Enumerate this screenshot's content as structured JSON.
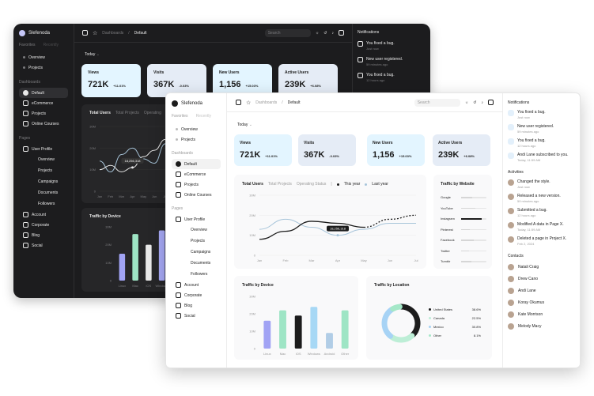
{
  "dark": {
    "brand": "Slefenoda",
    "fav_tabs": [
      "Favorites",
      "Recently"
    ],
    "fav_items": [
      "Overview",
      "Projects"
    ],
    "dash_heading": "Dashboards",
    "dash_items": [
      "Default",
      "eCommerce",
      "Projects",
      "Online Courses"
    ],
    "pages_heading": "Pages",
    "user_profile": "User Profile",
    "profile_sub": [
      "Overview",
      "Projects",
      "Campaigns",
      "Documents",
      "Followers"
    ],
    "pages_items": [
      "Account",
      "Corporate",
      "Blog",
      "Social"
    ],
    "breadcrumb": [
      "Dashboards",
      "Default"
    ],
    "search_placeholder": "Search",
    "today": "Today",
    "stats": [
      {
        "label": "Views",
        "value": "721K",
        "change": "+11.01%"
      },
      {
        "label": "Visits",
        "value": "367K",
        "change": "-0.03%"
      },
      {
        "label": "New Users",
        "value": "1,156",
        "change": "+15.03%"
      },
      {
        "label": "Active Users",
        "value": "239K",
        "change": "+6.08%"
      }
    ],
    "tabs": [
      "Total Users",
      "Total Projects",
      "Operating"
    ],
    "notifications_title": "Notifications",
    "notifications": [
      {
        "text": "You fixed a bug.",
        "time": "Just now"
      },
      {
        "text": "New user registered.",
        "time": "59 minutes ago"
      },
      {
        "text": "You fixed a bug.",
        "time": "12 hours ago"
      }
    ],
    "device_title": "Traffic by Device",
    "annotation": "18,256,318"
  },
  "light": {
    "brand": "Slefenoda",
    "fav_tabs": [
      "Favorites",
      "Recently"
    ],
    "fav_items": [
      "Overview",
      "Projects"
    ],
    "dash_heading": "Dashboards",
    "dash_items": [
      "Default",
      "eCommerce",
      "Projects",
      "Online Courses"
    ],
    "pages_heading": "Pages",
    "user_profile": "User Profile",
    "profile_sub": [
      "Overview",
      "Projects",
      "Campaigns",
      "Documents",
      "Followers"
    ],
    "pages_items": [
      "Account",
      "Corporate",
      "Blog",
      "Social"
    ],
    "breadcrumb": [
      "Dashboards",
      "Default"
    ],
    "search_placeholder": "Search",
    "today": "Today",
    "stats": [
      {
        "label": "Views",
        "value": "721K",
        "change": "+11.01%"
      },
      {
        "label": "Visits",
        "value": "367K",
        "change": "-0.03%"
      },
      {
        "label": "New Users",
        "value": "1,156",
        "change": "+15.03%"
      },
      {
        "label": "Active Users",
        "value": "239K",
        "change": "+6.08%"
      }
    ],
    "tabs": [
      "Total Users",
      "Total Projects",
      "Operating Status"
    ],
    "legend": [
      "This year",
      "Last year"
    ],
    "notifications_title": "Notifications",
    "notifications": [
      {
        "text": "You fixed a bug.",
        "time": "Just now"
      },
      {
        "text": "New user registered.",
        "time": "59 minutes ago"
      },
      {
        "text": "You fixed a bug.",
        "time": "12 hours ago"
      },
      {
        "text": "Andi Lane subscribed to you.",
        "time": "Today, 11:59 AM"
      }
    ],
    "activities_title": "Activities",
    "activities": [
      {
        "text": "Changed the style.",
        "time": "Just now"
      },
      {
        "text": "Released a new version.",
        "time": "59 minutes ago"
      },
      {
        "text": "Submitted a bug.",
        "time": "12 hours ago"
      },
      {
        "text": "Modified A data in Page X.",
        "time": "Today, 11:59 AM"
      },
      {
        "text": "Deleted a page in Project X.",
        "time": "Feb 2, 2024"
      }
    ],
    "contacts_title": "Contacts",
    "contacts": [
      "Natali Craig",
      "Drew Cano",
      "Andi Lane",
      "Koray Okumus",
      "Kate Morrison",
      "Melody Macy"
    ],
    "website_title": "Traffic by Website",
    "websites": [
      {
        "name": "Google",
        "level": 0.45
      },
      {
        "name": "YouTube",
        "level": 0.55
      },
      {
        "name": "Instagram",
        "level": 0.8
      },
      {
        "name": "Pinterest",
        "level": 0.35
      },
      {
        "name": "Facebook",
        "level": 0.5
      },
      {
        "name": "Twitter",
        "level": 0.3
      },
      {
        "name": "Tumblr",
        "level": 0.4
      }
    ],
    "location_title": "Traffic by Location",
    "locations": [
      {
        "name": "United States",
        "value": "38.6%"
      },
      {
        "name": "Canada",
        "value": "22.5%"
      },
      {
        "name": "Mexico",
        "value": "30.8%"
      },
      {
        "name": "Other",
        "value": "8.1%"
      }
    ]
  },
  "chart_data": [
    {
      "type": "line",
      "title": "Total Users",
      "categories": [
        "Jan",
        "Feb",
        "Mar",
        "Apr",
        "May",
        "Jun",
        "Jul"
      ],
      "yticks": [
        "0",
        "10M",
        "20M",
        "30M"
      ],
      "ylim": [
        0,
        30
      ],
      "series": [
        {
          "name": "This year",
          "values": [
            10,
            12,
            9,
            11,
            16,
            19,
            24
          ]
        },
        {
          "name": "Last year",
          "values": [
            14,
            9,
            17,
            20,
            15,
            13,
            22
          ]
        }
      ],
      "annotation": "18,256,318"
    },
    {
      "type": "bar",
      "title": "Traffic by Device",
      "categories": [
        "Linux",
        "Mac",
        "iOS",
        "Windows",
        "Android",
        "Other"
      ],
      "yticks": [
        "0",
        "10M",
        "20M",
        "30M"
      ],
      "ylim": [
        0,
        30
      ],
      "values": [
        16,
        22,
        19,
        24,
        9,
        22
      ],
      "colors": [
        "#a1a3f4",
        "#9ee5c5",
        "#1c1c1c",
        "#a7d8f5",
        "#b1cde6",
        "#9ee5c5"
      ]
    },
    {
      "type": "pie",
      "title": "Traffic by Location",
      "categories": [
        "United States",
        "Canada",
        "Mexico",
        "Other"
      ],
      "values": [
        38.6,
        22.5,
        30.8,
        8.1
      ],
      "colors": [
        "#1c1c1c",
        "#bdeed6",
        "#a7d3f5",
        "#a5e8c8"
      ]
    },
    {
      "type": "line",
      "title": "Total Users",
      "categories": [
        "Jan",
        "Feb",
        "Mar",
        "Apr",
        "May",
        "Jun",
        "Jul"
      ],
      "yticks": [
        "0",
        "10M",
        "20M",
        "30M"
      ],
      "ylim": [
        0,
        30
      ],
      "series": [
        {
          "name": "This year",
          "values": [
            8,
            12,
            17,
            16,
            14,
            18,
            20
          ]
        },
        {
          "name": "Last year",
          "values": [
            13,
            18,
            14,
            10,
            13,
            16,
            16
          ]
        }
      ],
      "annotation": "18,256,318"
    },
    {
      "type": "bar",
      "title": "Traffic by Device",
      "categories": [
        "Linux",
        "Mac",
        "iOS",
        "Windows"
      ],
      "yticks": [
        "0",
        "10M",
        "20M",
        "30M"
      ],
      "ylim": [
        0,
        30
      ],
      "values": [
        15,
        26,
        20,
        28
      ],
      "colors": [
        "#a1a3f4",
        "#9ee5c5",
        "#e8e8e8",
        "#a7a9f6"
      ]
    }
  ],
  "colors": {
    "stat_blue": "#e3f5ff",
    "stat_gray": "#e5ecf6",
    "dark_bg": "#1c1c1e"
  }
}
